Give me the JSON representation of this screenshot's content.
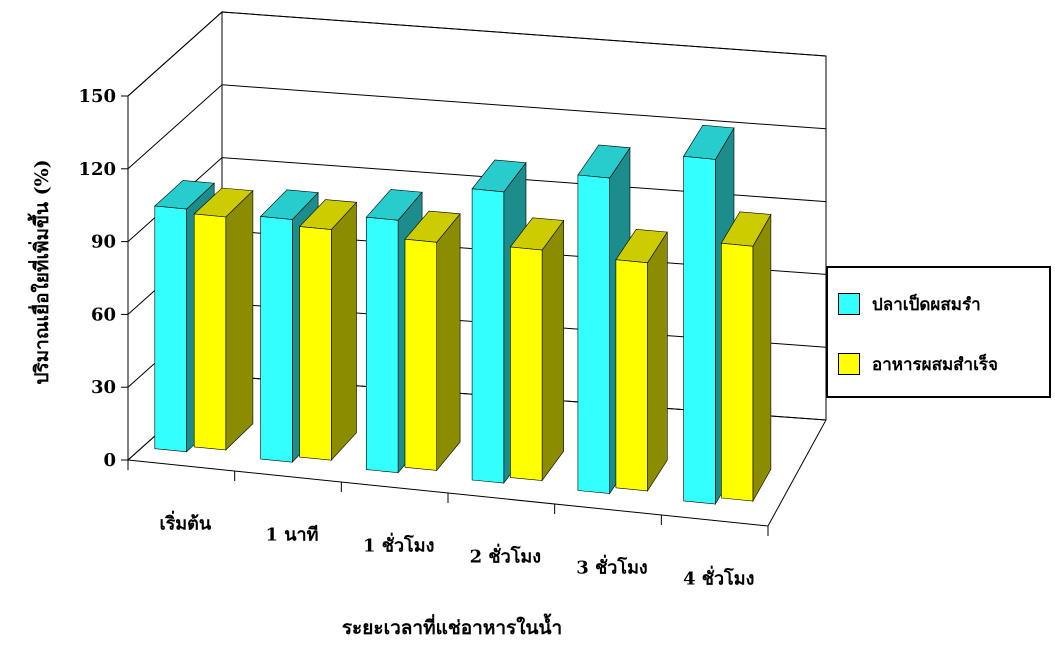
{
  "chart_data": {
    "type": "bar",
    "title": "",
    "xlabel": "ระยะเวลาที่แช่อาหารในน้ำ",
    "ylabel": "ปริมาณเยื่อใยที่เพิ่มขึ้น (%)",
    "ylim": [
      0,
      150
    ],
    "yticks": [
      0,
      30,
      60,
      90,
      120,
      150
    ],
    "categories": [
      "เริ่มต้น",
      "1 นาที",
      "1 ชั่วโมง",
      "2 ชั่วโมง",
      "3 ชั่วโมง",
      "4 ชั่วโมง"
    ],
    "series": [
      {
        "name": "ปลาเป็ดผสมรำ",
        "color": "#33ffff",
        "values": [
          100,
          100,
          104,
          120,
          130,
          142
        ]
      },
      {
        "name": "อาหารผสมสำเร็จ",
        "color": "#ffff00",
        "values": [
          96,
          95,
          94,
          95,
          94,
          105
        ]
      }
    ],
    "grid": true,
    "legend_position": "right",
    "style": "3d-clustered-column"
  }
}
